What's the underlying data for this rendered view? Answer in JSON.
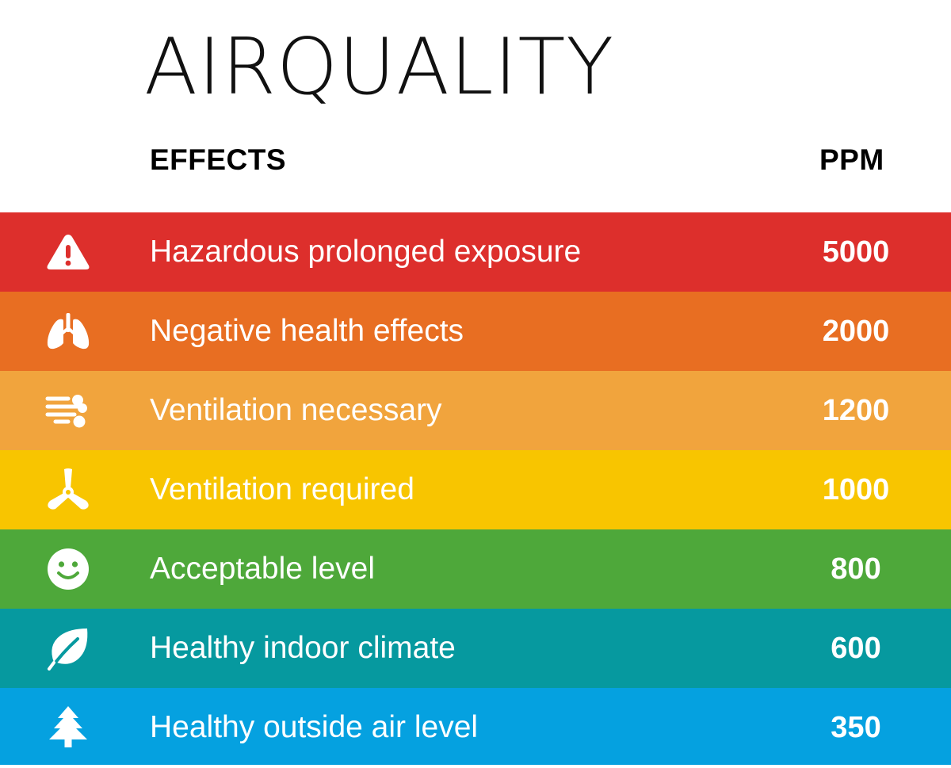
{
  "title": "AIRQUALITY",
  "columns": {
    "effects": "EFFECTS",
    "ppm": "PPM"
  },
  "rows": [
    {
      "label": "Hazardous prolonged exposure",
      "ppm": "5000",
      "color": "#DD2F2C",
      "icon": "warning-icon"
    },
    {
      "label": "Negative health effects",
      "ppm": "2000",
      "color": "#E86E22",
      "icon": "lungs-icon"
    },
    {
      "label": "Ventilation necessary",
      "ppm": "1200",
      "color": "#F1A43D",
      "icon": "wind-icon"
    },
    {
      "label": "Ventilation required",
      "ppm": "1000",
      "color": "#F8C500",
      "icon": "fan-icon"
    },
    {
      "label": "Acceptable level",
      "ppm": "800",
      "color": "#4EA83A",
      "icon": "smiley-icon"
    },
    {
      "label": "Healthy indoor climate",
      "ppm": "600",
      "color": "#06999F",
      "icon": "leaf-icon"
    },
    {
      "label": "Healthy outside air level",
      "ppm": "350",
      "color": "#05A1E0",
      "icon": "tree-icon"
    }
  ]
}
